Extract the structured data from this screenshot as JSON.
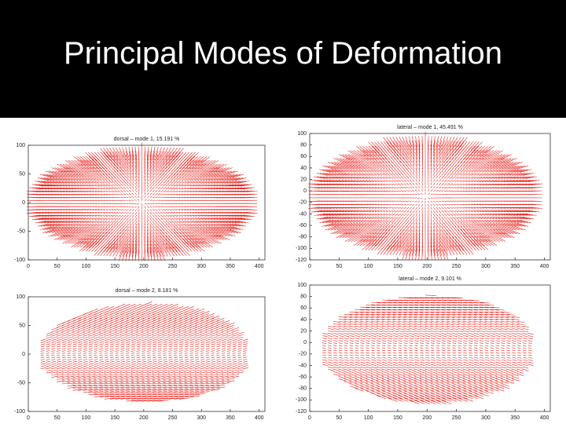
{
  "slide_title": "Principal Modes of Deformation",
  "chart_data": [
    {
      "type": "quiver",
      "title": "dorsal – mode 1, 15.191 %",
      "color": "#e8231e",
      "xlim": [
        0,
        410
      ],
      "ylim": [
        -100,
        100
      ],
      "xticks": [
        0,
        50,
        100,
        150,
        200,
        250,
        300,
        350,
        400
      ],
      "yticks": [
        -100,
        -50,
        0,
        50,
        100
      ]
    },
    {
      "type": "quiver",
      "title": "lateral – mode 1, 45.491 %",
      "color": "#e8231e",
      "xlim": [
        0,
        410
      ],
      "ylim": [
        -120,
        100
      ],
      "xticks": [
        0,
        50,
        100,
        150,
        200,
        250,
        300,
        350,
        400
      ],
      "yticks": [
        -120,
        -100,
        -80,
        -60,
        -40,
        -20,
        0,
        20,
        40,
        60,
        80,
        100
      ]
    },
    {
      "type": "quiver",
      "title": "dorsal – mode 2, 8.181 %",
      "color": "#e8231e",
      "xlim": [
        0,
        410
      ],
      "ylim": [
        -100,
        100
      ],
      "xticks": [
        0,
        50,
        100,
        150,
        200,
        250,
        300,
        350,
        400
      ],
      "yticks": [
        -100,
        -50,
        0,
        50,
        100
      ]
    },
    {
      "type": "quiver",
      "title": "lateral – mode 2, 9.101 %",
      "color": "#e8231e",
      "xlim": [
        0,
        410
      ],
      "ylim": [
        -120,
        100
      ],
      "xticks": [
        0,
        50,
        100,
        150,
        200,
        250,
        300,
        350,
        400
      ],
      "yticks": [
        -120,
        -100,
        -80,
        -60,
        -40,
        -20,
        0,
        20,
        40,
        60,
        80,
        100
      ]
    }
  ]
}
